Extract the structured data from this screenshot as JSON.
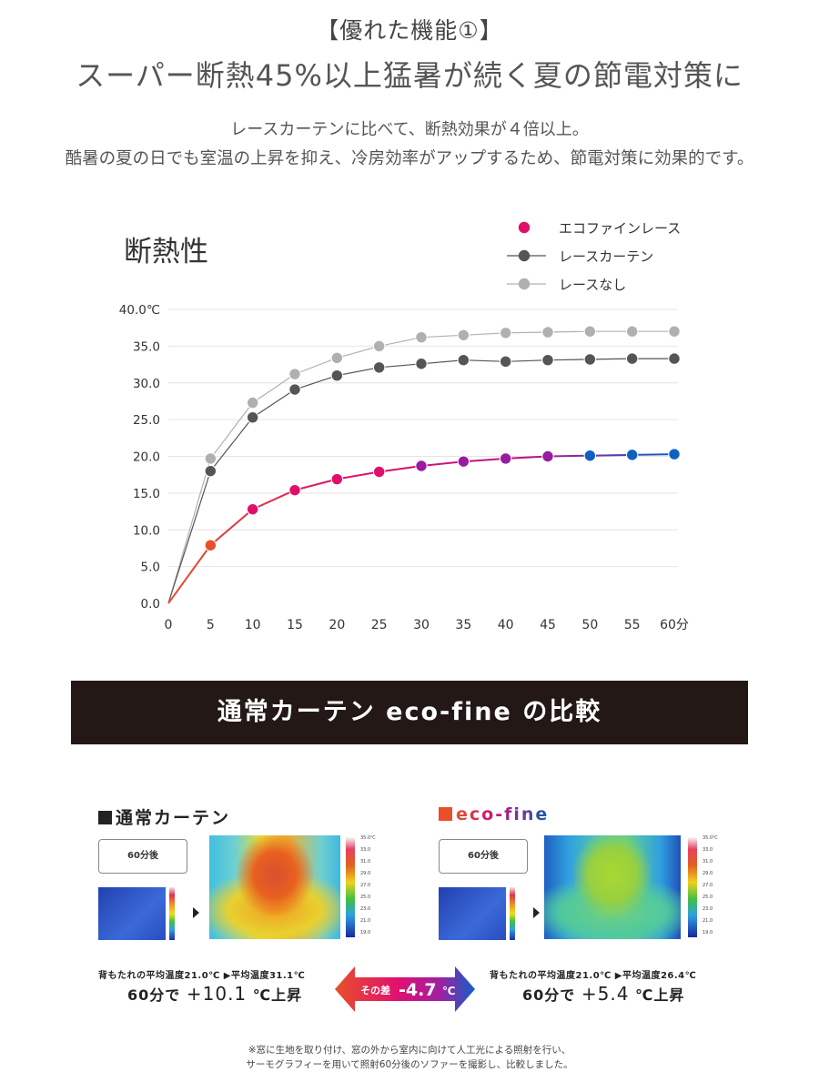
{
  "header": {
    "title_line1": "【優れた機能①】",
    "title_line2": "スーパー断熱45%以上猛暑が続く夏の節電対策に",
    "desc_line1": "レースカーテンに比べて、断熱効果が４倍以上。",
    "desc_line2": "酷暑の夏の日でも室温の上昇を抑え、冷房効率がアップするため、節電対策に効果的です。"
  },
  "chart_data": {
    "type": "line",
    "title": "断熱性",
    "x": [
      0,
      5,
      10,
      15,
      20,
      25,
      30,
      35,
      40,
      45,
      50,
      55,
      60
    ],
    "x_tick_labels": [
      "0",
      "5",
      "10",
      "15",
      "20",
      "25",
      "30",
      "35",
      "40",
      "45",
      "50",
      "55",
      "60分"
    ],
    "y_tick_labels": [
      "0.0",
      "5.0",
      "10.0",
      "15.0",
      "20.0",
      "25.0",
      "30.0",
      "35.0",
      "40.0℃"
    ],
    "ylim": [
      0,
      40
    ],
    "grid": true,
    "legend_position": "top-right",
    "series": [
      {
        "name": "エコファインレース",
        "color": "#d4006e",
        "values": [
          0,
          7.9,
          12.8,
          15.4,
          16.9,
          17.9,
          18.7,
          19.3,
          19.7,
          20.0,
          20.1,
          20.2,
          20.3
        ]
      },
      {
        "name": "レースカーテン",
        "color": "#555555",
        "values": [
          0,
          18.0,
          25.3,
          29.1,
          31.0,
          32.1,
          32.6,
          33.1,
          32.9,
          33.1,
          33.2,
          33.3,
          33.3
        ]
      },
      {
        "name": "レースなし",
        "color": "#b0b0b0",
        "values": [
          0,
          19.7,
          27.3,
          31.2,
          33.4,
          35.0,
          36.2,
          36.5,
          36.8,
          36.9,
          37.0,
          37.0,
          37.0
        ]
      }
    ]
  },
  "banner": {
    "label": "通常カーテン eco-fine の比較"
  },
  "left_panel": {
    "title": "通常カーテン",
    "after_label": "60分後",
    "avg_text": "背もたれの平均温度21.0℃ ▶平均温度31.1℃",
    "rise_prefix": "60分で",
    "rise_value": "+10.1",
    "rise_suffix": "℃上昇",
    "scale_labels": [
      "35.0℃",
      "33.0",
      "31.0",
      "29.0",
      "27.0",
      "25.0",
      "23.0",
      "21.0",
      "19.0"
    ]
  },
  "right_panel": {
    "title": "eco-fine",
    "after_label": "60分後",
    "avg_text": "背もたれの平均温度21.0℃ ▶平均温度26.4℃",
    "rise_prefix": "60分で",
    "rise_value": "+5.4",
    "rise_suffix": "℃上昇",
    "scale_labels": [
      "35.0℃",
      "33.0",
      "31.0",
      "29.0",
      "27.0",
      "25.0",
      "23.0",
      "21.0",
      "19.0"
    ]
  },
  "difference": {
    "prefix": "その差",
    "value": "-4.7",
    "unit": "℃"
  },
  "footnote": {
    "line1": "※窓に生地を取り付け、窓の外から室内に向けて人工光による照射を行い、",
    "line2": "サーモグラフィーを用いて照射60分後のソファーを撮影し、比較しました。"
  },
  "colors": {
    "eco": "#d4006e",
    "lace": "#555555",
    "none": "#b0b0b0",
    "banner": "#231815",
    "eco_title_start": "#e8502a",
    "eco_title_end": "#0a5fb4"
  }
}
